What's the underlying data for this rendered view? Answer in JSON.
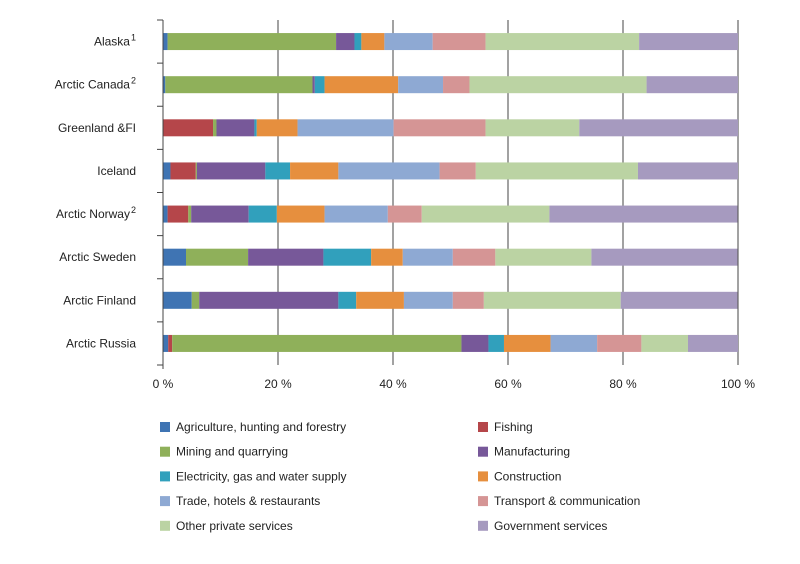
{
  "chart_data": {
    "type": "bar",
    "orientation": "horizontal",
    "stacked": true,
    "normalized_percent": true,
    "categories": [
      {
        "label": "Alaska",
        "sup": "1"
      },
      {
        "label": "Arctic Canada",
        "sup": "2"
      },
      {
        "label": "Greenland &FI",
        "sup": ""
      },
      {
        "label": "Iceland",
        "sup": ""
      },
      {
        "label": "Arctic Norway",
        "sup": "2"
      },
      {
        "label": "Arctic Sweden",
        "sup": ""
      },
      {
        "label": "Arctic Finland",
        "sup": ""
      },
      {
        "label": "Arctic Russia",
        "sup": ""
      }
    ],
    "series": [
      {
        "name": "Agriculture, hunting and forestry",
        "color": "#3F74B3",
        "values": [
          0.8,
          0.4,
          0,
          1.3,
          0.8,
          4.0,
          5.0,
          0.9
        ]
      },
      {
        "name": "Fishing",
        "color": "#B5464A",
        "values": [
          0,
          0,
          8.7,
          4.4,
          3.6,
          0,
          0,
          0.7
        ]
      },
      {
        "name": "Mining and quarrying",
        "color": "#8FB05A",
        "values": [
          29.3,
          25.6,
          0.6,
          0.2,
          0.5,
          10.8,
          1.3,
          50.3
        ]
      },
      {
        "name": "Manufacturing",
        "color": "#775899",
        "values": [
          3.2,
          0.4,
          6.6,
          11.9,
          10.0,
          13.1,
          24.2,
          4.7
        ]
      },
      {
        "name": "Electricity, gas and water supply",
        "color": "#31A0BC",
        "values": [
          1.2,
          1.7,
          0.4,
          4.3,
          4.9,
          8.3,
          3.1,
          2.7
        ]
      },
      {
        "name": "Construction",
        "color": "#E68F3E",
        "values": [
          4.0,
          12.8,
          7.1,
          8.4,
          8.3,
          5.5,
          8.3,
          8.1
        ]
      },
      {
        "name": "Trade, hotels & restaurants",
        "color": "#8EA9D3",
        "values": [
          8.4,
          7.8,
          16.7,
          17.6,
          11.0,
          8.7,
          8.5,
          8.1
        ]
      },
      {
        "name": "Transport & communication",
        "color": "#D59595",
        "values": [
          9.2,
          4.6,
          16.0,
          6.3,
          5.9,
          7.4,
          5.4,
          7.7
        ]
      },
      {
        "name": "Other private services",
        "color": "#BBD3A3",
        "values": [
          26.7,
          30.8,
          16.3,
          28.2,
          22.2,
          16.7,
          23.8,
          8.1
        ]
      },
      {
        "name": "Government services",
        "color": "#A69ABF",
        "values": [
          17.2,
          15.9,
          27.6,
          17.4,
          32.7,
          25.4,
          20.3,
          8.7
        ]
      }
    ],
    "xlim": [
      0,
      100
    ],
    "xticks": [
      0,
      20,
      40,
      60,
      80,
      100
    ],
    "xtick_labels": [
      "0 %",
      "20 %",
      "40 %",
      "60 %",
      "80 %",
      "100 %"
    ],
    "grid": "vertical",
    "legend_position": "bottom"
  }
}
